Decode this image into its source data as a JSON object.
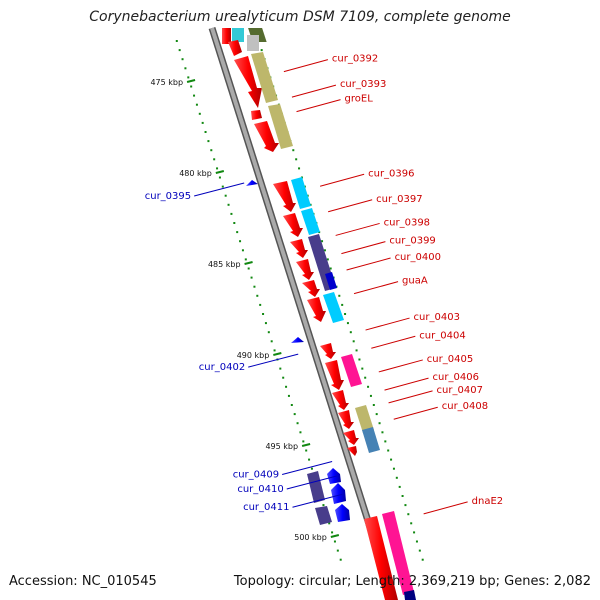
{
  "title": "Corynebacterium urealyticum DSM 7109, complete genome",
  "footer": {
    "accession": "Accession: NC_010545",
    "summary": "Topology: circular; Length: 2,369,219 bp; Genes: 2,082"
  },
  "scale_ticks": [
    {
      "label": "475 kbp",
      "kbp": 475
    },
    {
      "label": "480 kbp",
      "kbp": 480
    },
    {
      "label": "485 kbp",
      "kbp": 485
    },
    {
      "label": "490 kbp",
      "kbp": 490
    },
    {
      "label": "495 kbp",
      "kbp": 495
    },
    {
      "label": "500 kbp",
      "kbp": 500
    }
  ],
  "forward_labels": [
    {
      "text": "cur_0392",
      "kbp": 474.1
    },
    {
      "text": "cur_0393",
      "kbp": 475.5
    },
    {
      "text": "groEL",
      "kbp": 476.3
    },
    {
      "text": "cur_0396",
      "kbp": 480.4
    },
    {
      "text": "cur_0397",
      "kbp": 481.8
    },
    {
      "text": "cur_0398",
      "kbp": 483.1
    },
    {
      "text": "cur_0399",
      "kbp": 484.1
    },
    {
      "text": "cur_0400",
      "kbp": 485.0
    },
    {
      "text": "guaA",
      "kbp": 486.3
    },
    {
      "text": "cur_0403",
      "kbp": 488.3
    },
    {
      "text": "cur_0404",
      "kbp": 489.3
    },
    {
      "text": "cur_0405",
      "kbp": 490.6
    },
    {
      "text": "cur_0406",
      "kbp": 491.6
    },
    {
      "text": "cur_0407",
      "kbp": 492.3
    },
    {
      "text": "cur_0408",
      "kbp": 493.2
    },
    {
      "text": "dnaE2",
      "kbp": 498.4
    }
  ],
  "reverse_labels": [
    {
      "text": "cur_0395",
      "kbp": 481.1
    },
    {
      "text": "cur_0402",
      "kbp": 490.5
    },
    {
      "text": "cur_0409",
      "kbp": 496.4
    },
    {
      "text": "cur_0410",
      "kbp": 497.2
    },
    {
      "text": "cur_0411",
      "kbp": 498.2
    }
  ],
  "colors": {
    "cds": "#ff0000",
    "reverse_cds": "#0000ff",
    "backbone": "#888888",
    "tick": "#118811",
    "cog_teal": "#00bbcc",
    "cog_olive": "#bdb76b",
    "cog_cyan": "#00ccff",
    "cog_purple": "#483d8b",
    "cog_pink": "#ff1493",
    "cog_steel": "#4682b4"
  }
}
